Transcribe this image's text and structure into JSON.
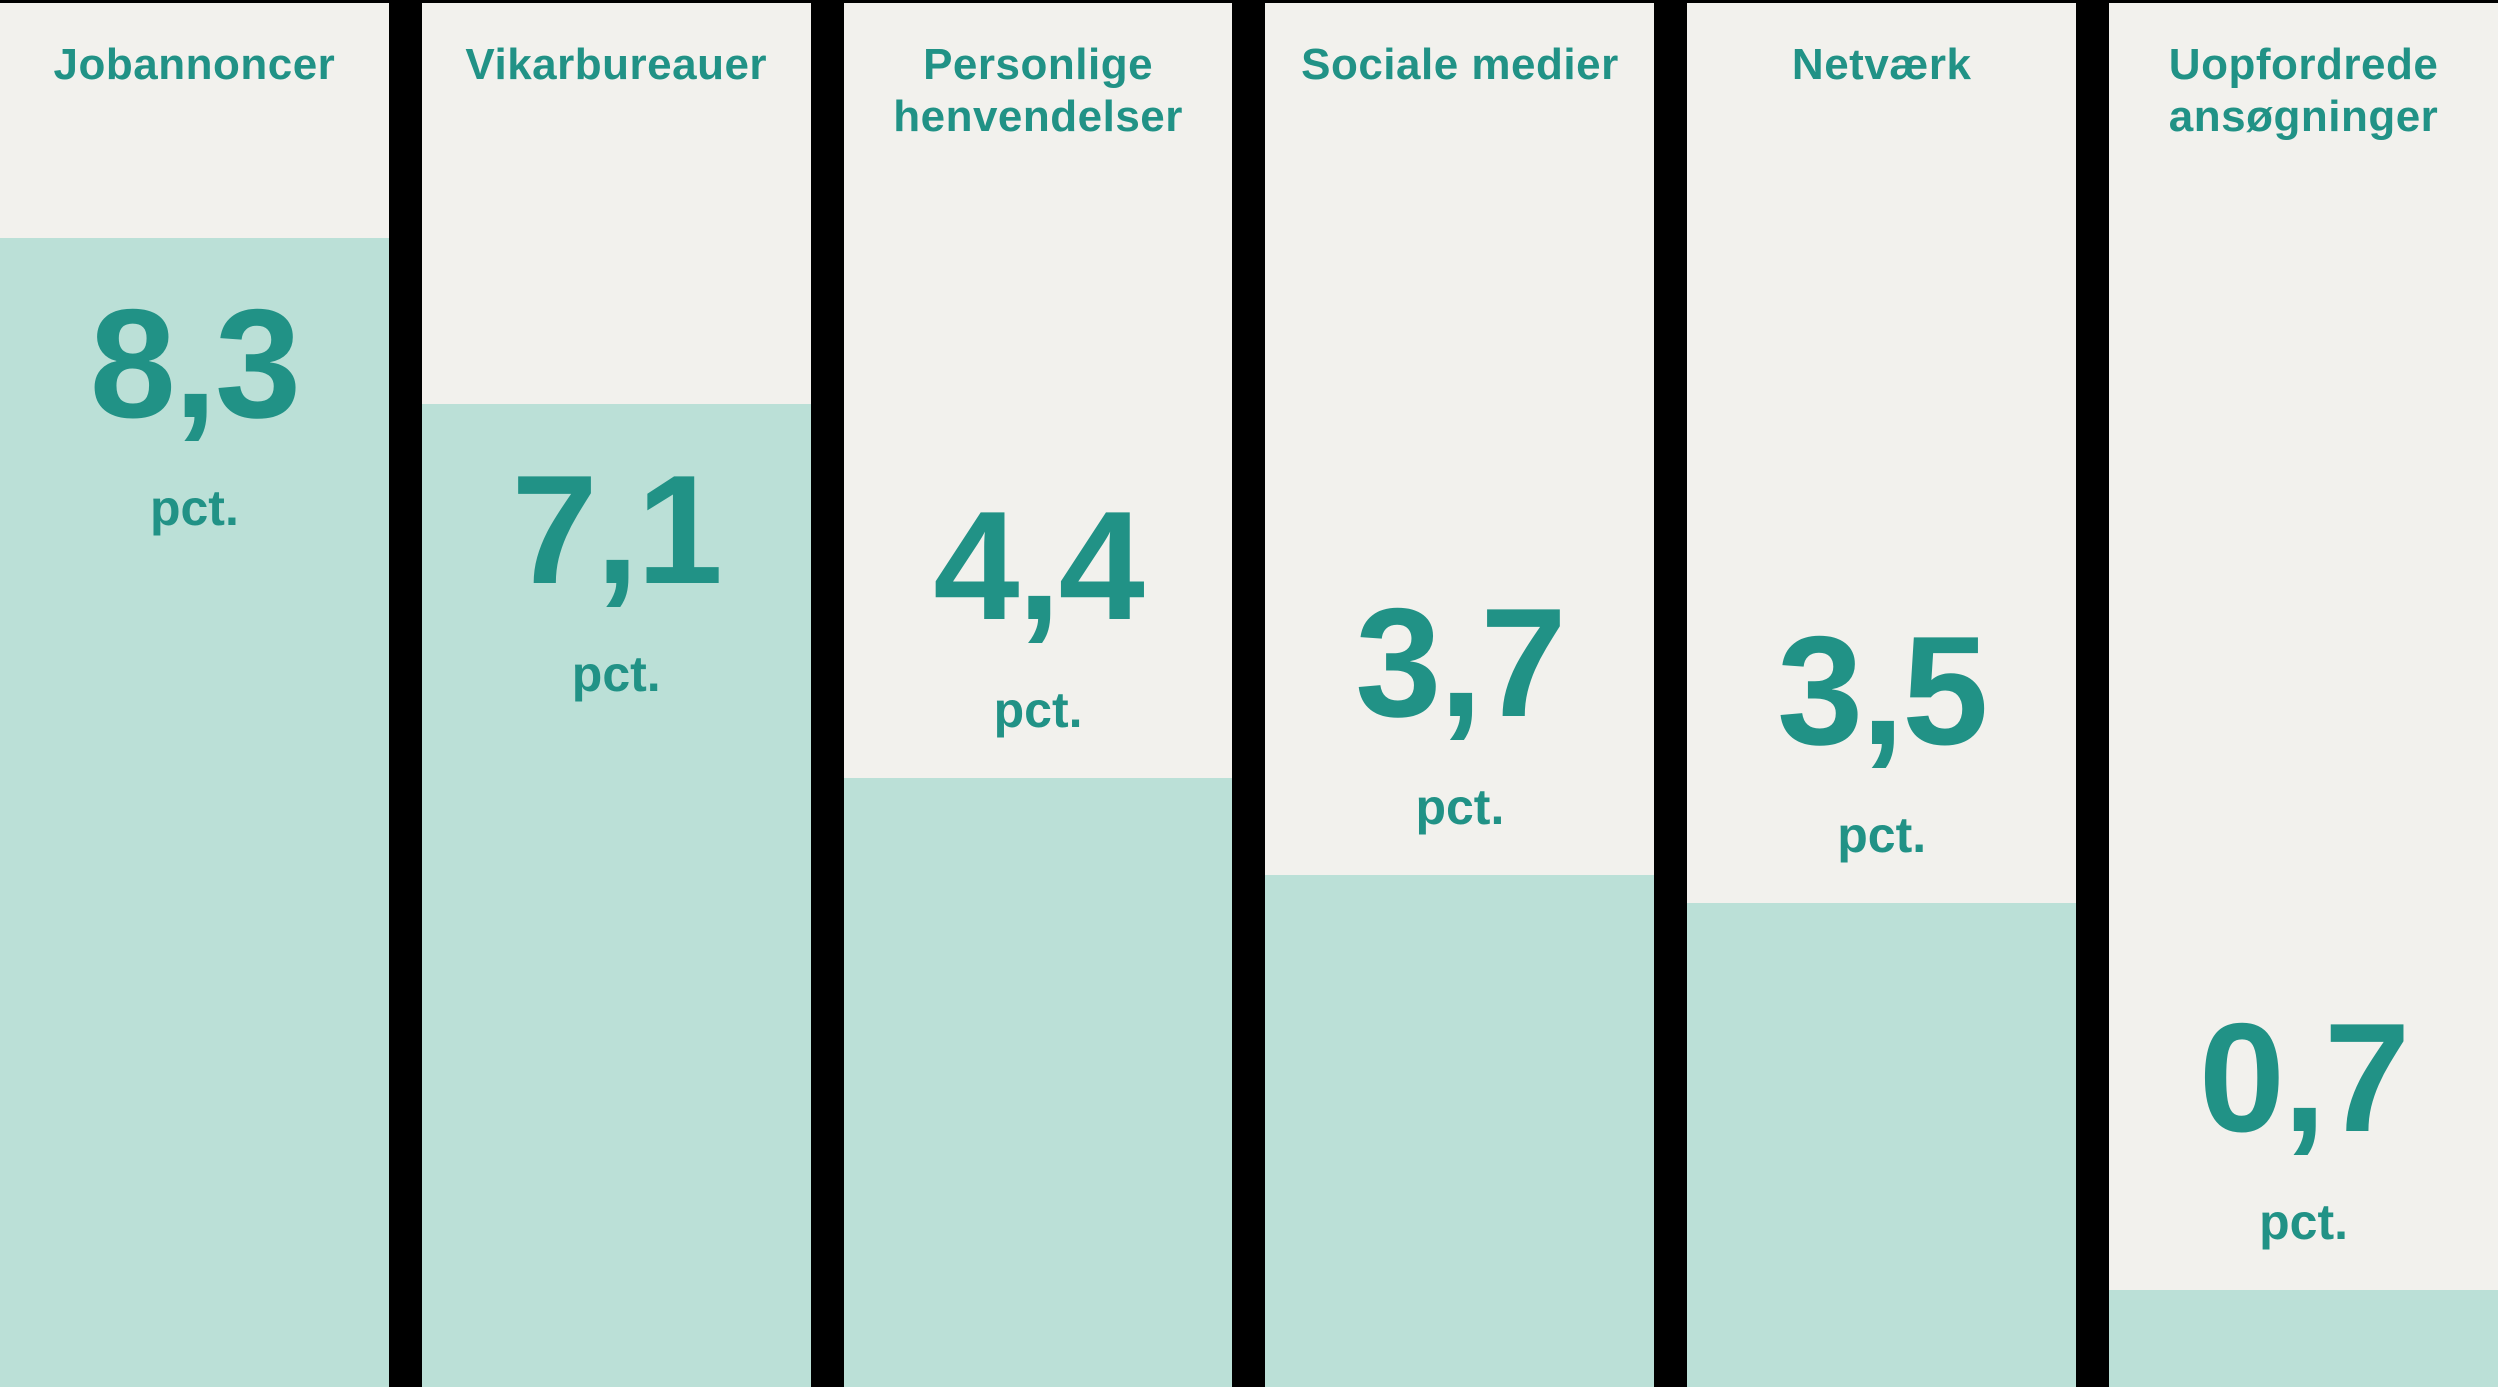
{
  "chart_data": {
    "type": "bar",
    "title": "",
    "categories": [
      "Jobannoncer",
      "Vikarbureauer",
      "Personlige henvendelser",
      "Sociale medier",
      "Netværk",
      "Uopfordrede ansøgninger"
    ],
    "values": [
      8.3,
      7.1,
      4.4,
      3.7,
      3.5,
      0.7
    ],
    "value_labels": [
      "8,3",
      "7,1",
      "4,4",
      "3,7",
      "3,5",
      "0,7"
    ],
    "unit_label": "pct.",
    "xlabel": "",
    "ylabel": "",
    "ylim": [
      0,
      10
    ],
    "layout": {
      "orientation": "vertical-columns",
      "fill_rule": "fill height = value x 10% of panel height",
      "value_label_position": "inside fill when fill >= 50%, otherwise above fill line",
      "grid": false,
      "legend": "none"
    },
    "colors": {
      "background": "#000000",
      "panel": "#f2f1ed",
      "bar_fill": "#bbe0d7",
      "text": "#219286"
    }
  },
  "columns": [
    {
      "label": "Jobannoncer",
      "value": 8.3,
      "value_label": "8,3",
      "unit_label": "pct."
    },
    {
      "label": "Vikarbureauer",
      "value": 7.1,
      "value_label": "7,1",
      "unit_label": "pct."
    },
    {
      "label": "Personlige henvendelser",
      "value": 4.4,
      "value_label": "4,4",
      "unit_label": "pct."
    },
    {
      "label": "Sociale medier",
      "value": 3.7,
      "value_label": "3,7",
      "unit_label": "pct."
    },
    {
      "label": "Netværk",
      "value": 3.5,
      "value_label": "3,5",
      "unit_label": "pct."
    },
    {
      "label": "Uopfordrede ansøgninger",
      "value": 0.7,
      "value_label": "0,7",
      "unit_label": "pct."
    }
  ]
}
